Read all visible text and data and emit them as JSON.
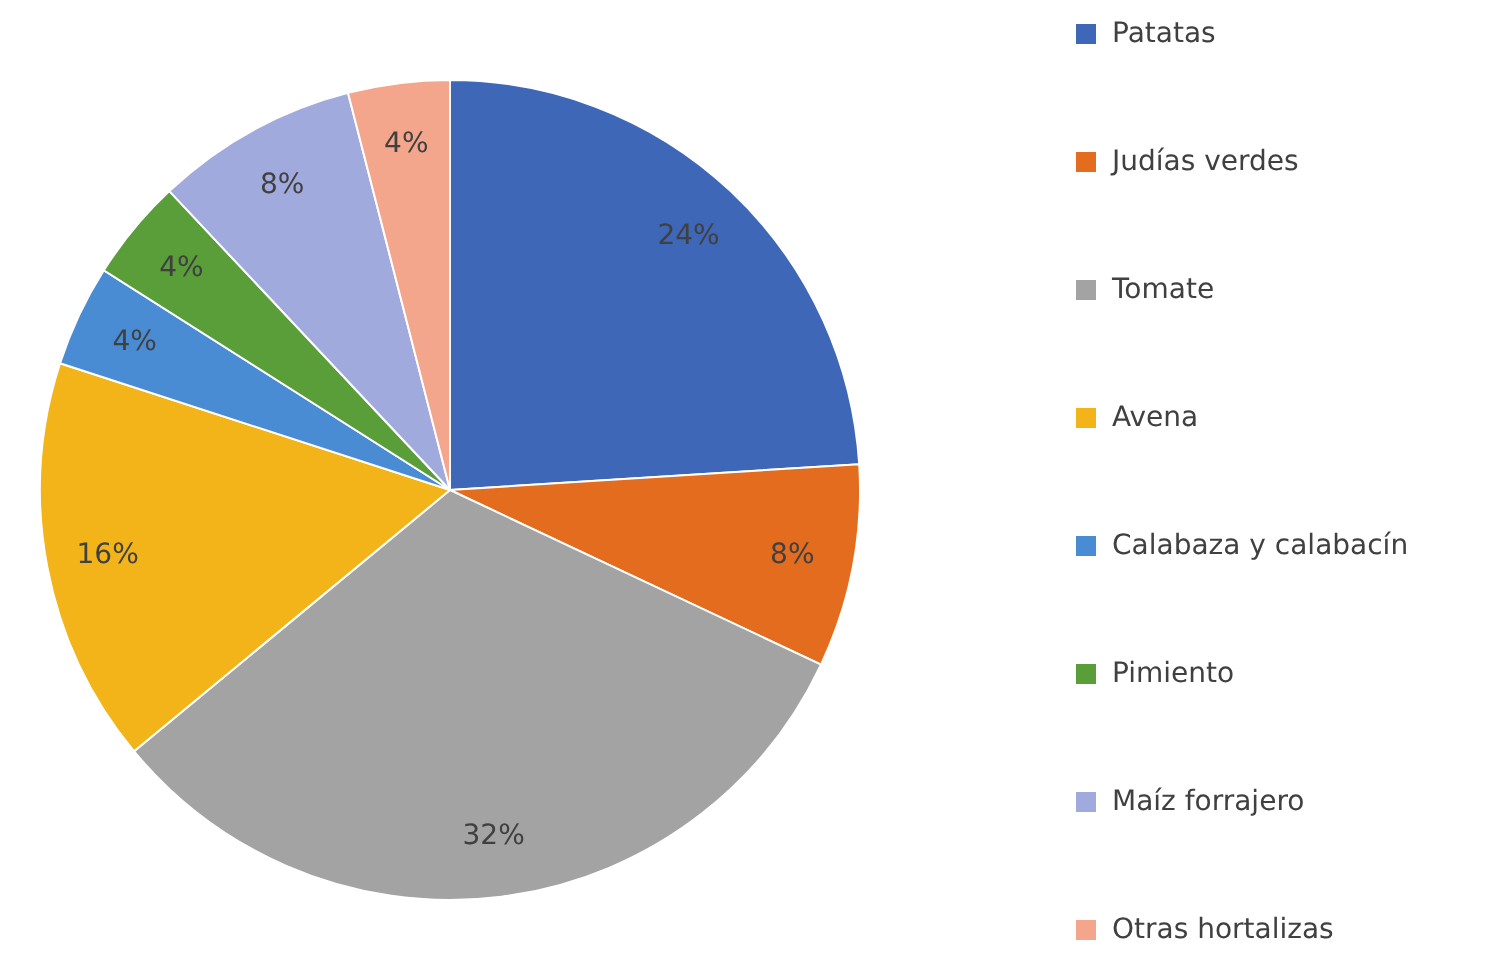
{
  "chart_data": {
    "type": "pie",
    "categories": [
      "Patatas",
      "Judías verdes",
      "Tomate",
      "Avena",
      "Calabaza y calabacín",
      "Pimiento",
      "Maíz forrajero",
      "Otras hortalizas"
    ],
    "values": [
      24,
      8,
      32,
      16,
      4,
      4,
      8,
      4
    ],
    "value_labels": [
      "24%",
      "8%",
      "32%",
      "16%",
      "4%",
      "4%",
      "8%",
      "4%"
    ],
    "colors": [
      "#3f67b8",
      "#e36c1e",
      "#a3a3a3",
      "#f2b418",
      "#4a8cd4",
      "#5a9e3a",
      "#a0aadc",
      "#f4a68c"
    ],
    "legend": "right"
  }
}
